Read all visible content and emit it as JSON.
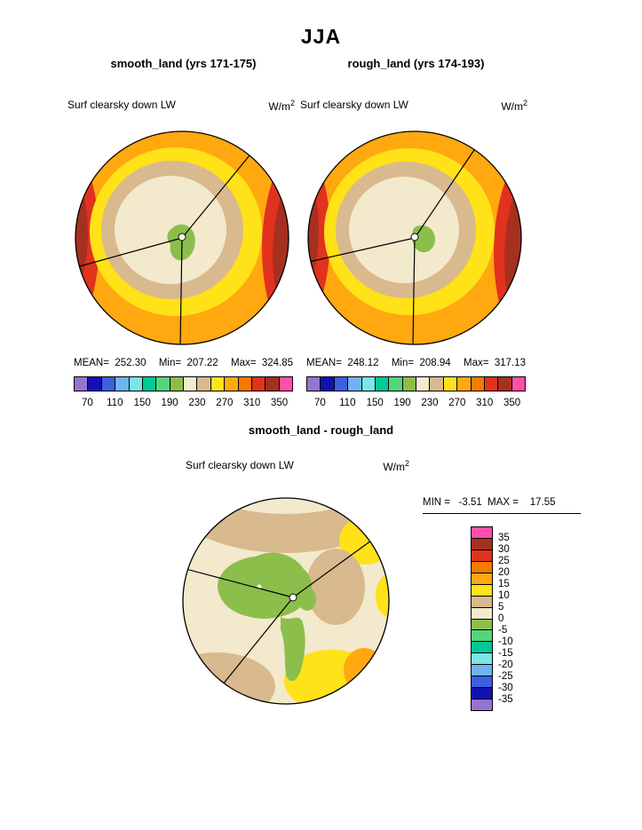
{
  "page": {
    "title": "JJA"
  },
  "panels": [
    {
      "subtitle": "smooth_land (yrs 171-175)",
      "field_label": "Surf clearsky down LW",
      "units_base": "W/m",
      "units_exp": "2",
      "stats": {
        "mean": "MEAN=  252.30",
        "min": "Min=  207.22",
        "max": "Max=  324.85"
      }
    },
    {
      "subtitle": "rough_land (yrs 174-193)",
      "field_label": "Surf clearsky down LW",
      "units_base": "W/m",
      "units_exp": "2",
      "stats": {
        "mean": "MEAN=  248.12",
        "min": "Min=  208.94",
        "max": "Max=  317.13"
      }
    }
  ],
  "colorbar_h": {
    "colors": [
      "#9673CE",
      "#1111B3",
      "#3D5FE0",
      "#6FB4F0",
      "#7AE6E6",
      "#00C896",
      "#55D47D",
      "#8CBE4B",
      "#F3E9CD",
      "#D9B98E",
      "#FFE218",
      "#FFA810",
      "#F57A00",
      "#E1321E",
      "#A63020",
      "#FF4FA8"
    ],
    "ticks": [
      "70",
      "110",
      "150",
      "190",
      "230",
      "270",
      "310",
      "350"
    ]
  },
  "diff": {
    "title": "smooth_land - rough_land",
    "field_label": "Surf clearsky down LW",
    "units_base": "W/m",
    "units_exp": "2",
    "minmax": "MIN =   -3.51  MAX =    17.55",
    "colorbar": {
      "colors": [
        "#FF4FA8",
        "#A63020",
        "#E1321E",
        "#F57A00",
        "#FFA810",
        "#FFE218",
        "#D9B98E",
        "#F3E9CD",
        "#8CBE4B",
        "#55D47D",
        "#00C896",
        "#7AE6E6",
        "#6FB4F0",
        "#3D5FE0",
        "#1111B3",
        "#9673CE"
      ],
      "labels": [
        "35",
        "30",
        "25",
        "20",
        "15",
        "10",
        "5",
        "0",
        "-5",
        "-10",
        "-15",
        "-20",
        "-25",
        "-30",
        "-35"
      ]
    }
  },
  "chart_data": [
    {
      "type": "heatmap",
      "projection": "polar_stereographic",
      "season": "JJA",
      "title": "smooth_land (yrs 171-175)",
      "field": "Surf clearsky down LW",
      "units": "W/m^2",
      "stats": {
        "mean": 252.3,
        "min": 207.22,
        "max": 324.85
      },
      "levels": [
        70,
        90,
        110,
        130,
        150,
        170,
        190,
        210,
        230,
        250,
        270,
        290,
        310,
        330,
        350
      ],
      "colorbar_ticks": [
        70,
        110,
        150,
        190,
        230,
        270,
        310,
        350
      ],
      "legend_position": "bottom"
    },
    {
      "type": "heatmap",
      "projection": "polar_stereographic",
      "season": "JJA",
      "title": "rough_land (yrs 174-193)",
      "field": "Surf clearsky down LW",
      "units": "W/m^2",
      "stats": {
        "mean": 248.12,
        "min": 208.94,
        "max": 317.13
      },
      "levels": [
        70,
        90,
        110,
        130,
        150,
        170,
        190,
        210,
        230,
        250,
        270,
        290,
        310,
        330,
        350
      ],
      "colorbar_ticks": [
        70,
        110,
        150,
        190,
        230,
        270,
        310,
        350
      ],
      "legend_position": "bottom"
    },
    {
      "type": "heatmap",
      "projection": "polar_stereographic",
      "season": "JJA",
      "title": "smooth_land - rough_land",
      "field": "Surf clearsky down LW",
      "units": "W/m^2",
      "stats": {
        "min": -3.51,
        "max": 17.55
      },
      "levels": [
        -35,
        -30,
        -25,
        -20,
        -15,
        -10,
        -5,
        0,
        5,
        10,
        15,
        20,
        25,
        30,
        35
      ],
      "legend_position": "right"
    }
  ]
}
